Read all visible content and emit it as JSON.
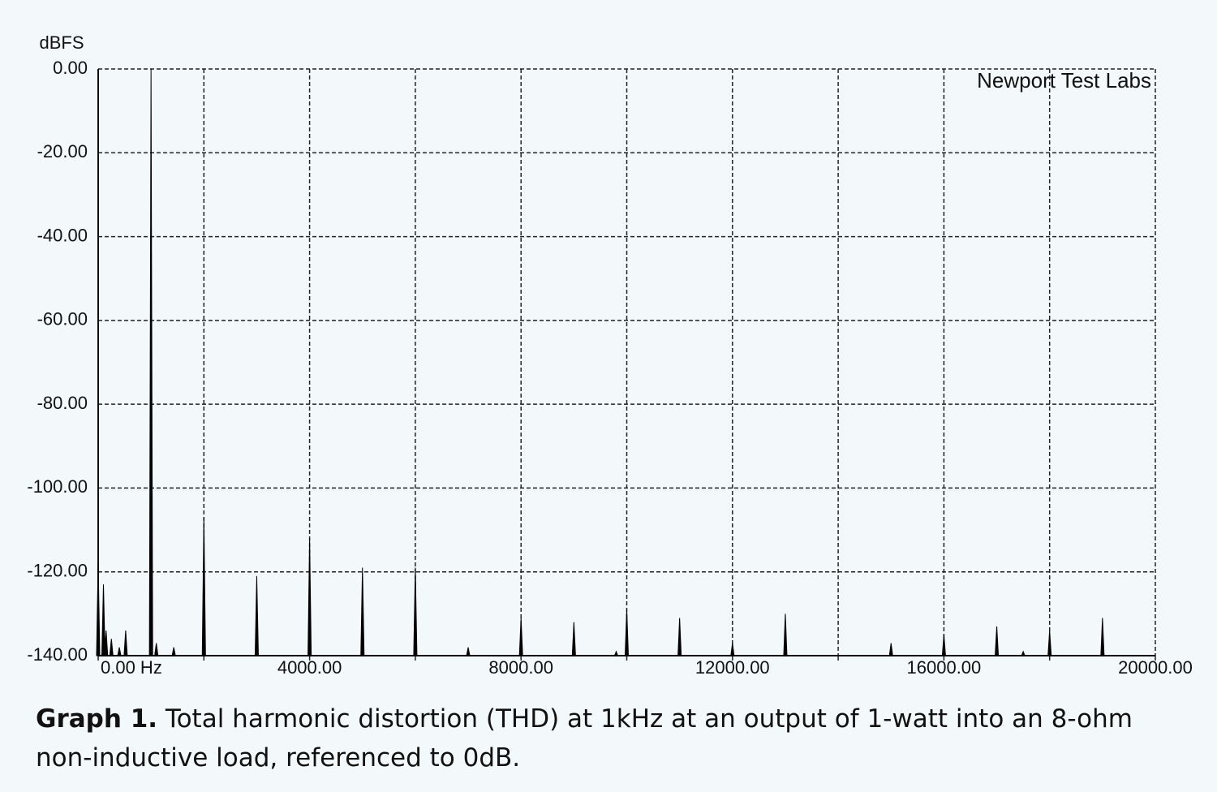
{
  "chart_data": {
    "type": "stem",
    "ylabel": "dBFS",
    "annotation": "Newport Test Labs",
    "color": "#000000",
    "x": [
      0,
      100,
      150,
      250,
      400,
      520,
      1000,
      1100,
      1430,
      2000,
      3000,
      4000,
      5000,
      6000,
      7000,
      8000,
      9000,
      9800,
      10000,
      11000,
      12000,
      13000,
      15000,
      16000,
      17000,
      17500,
      18000,
      19000
    ],
    "values": [
      -118,
      -123,
      -134,
      -136,
      -138,
      -134,
      0,
      -137,
      -138,
      -107,
      -121,
      -112,
      -119,
      -119,
      -138,
      -131,
      -132,
      -139,
      -129,
      -131,
      -137,
      -130,
      -137,
      -135,
      -133,
      -139,
      -134,
      -131
    ],
    "xlim": [
      0,
      20000
    ],
    "xticks": [
      {
        "value": 0,
        "label": "0.00 Hz"
      },
      {
        "value": 4000,
        "label": "4000.00"
      },
      {
        "value": 8000,
        "label": "8000.00"
      },
      {
        "value": 12000,
        "label": "12000.00"
      },
      {
        "value": 16000,
        "label": "16000.00"
      },
      {
        "value": 20000,
        "label": "20000.00"
      }
    ],
    "x_minor_ticks": [
      2000,
      6000,
      10000,
      14000,
      18000
    ],
    "ylim": [
      -140,
      0
    ],
    "yticks": [
      {
        "value": 0,
        "label": "0.00"
      },
      {
        "value": -20,
        "label": "-20.00"
      },
      {
        "value": -40,
        "label": "-40.00"
      },
      {
        "value": -60,
        "label": "-60.00"
      },
      {
        "value": -80,
        "label": "-80.00"
      },
      {
        "value": -100,
        "label": "-100.00"
      },
      {
        "value": -120,
        "label": "-120.00"
      },
      {
        "value": -140,
        "label": "-140.00"
      }
    ],
    "grid": true
  },
  "caption": {
    "label": "Graph 1.",
    "text": "Total harmonic distortion (THD) at 1kHz at an output of 1-watt into an 8-ohm non-inductive load, referenced to 0dB."
  }
}
